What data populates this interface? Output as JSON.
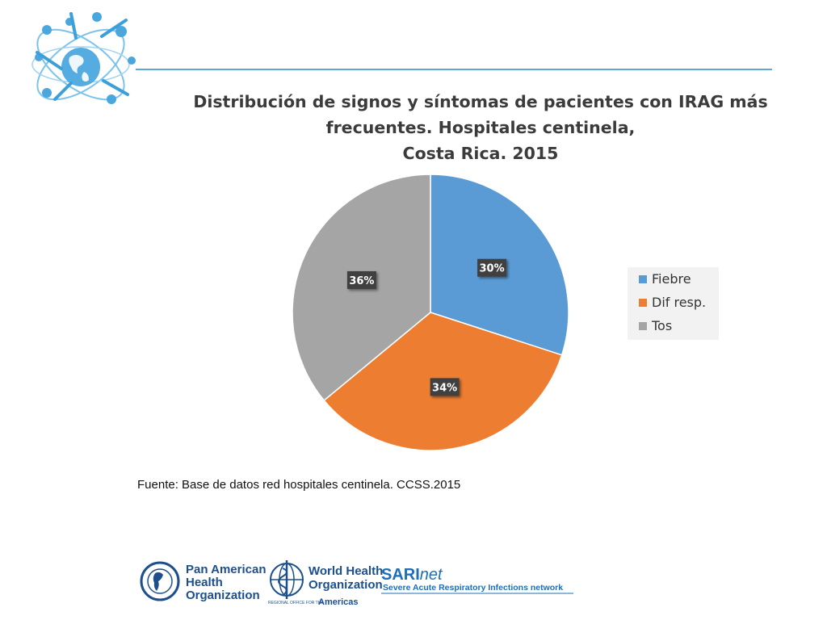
{
  "title": {
    "line1": "Distribución de signos y síntomas de  pacientes con IRAG  más",
    "line2": "frecuentes.  Hospitales centinela,",
    "line3": "Costa Rica. 2015"
  },
  "chart_data": {
    "type": "pie",
    "title": "Distribución de signos y síntomas de pacientes con IRAG más frecuentes. Hospitales centinela, Costa Rica. 2015",
    "categories": [
      "Fiebre",
      "Dif resp.",
      "Tos"
    ],
    "values": [
      30,
      34,
      36
    ],
    "labels": [
      "30%",
      "34%",
      "36%"
    ],
    "colors": [
      "#5b9bd5",
      "#ed7d31",
      "#a5a5a5"
    ],
    "legend": "right"
  },
  "source": "Fuente: Base de datos red hospitales centinela. CCSS.2015",
  "footer": {
    "paho": [
      "Pan American",
      "Health",
      "Organization"
    ],
    "who": [
      "World Health",
      "Organization"
    ],
    "who_regional": "REGIONAL OFFICE FOR THE",
    "who_americas": "Americas",
    "sari_a": "SARI",
    "sari_b": "net",
    "sari_sub": "Severe Acute Respiratory Infections network"
  }
}
